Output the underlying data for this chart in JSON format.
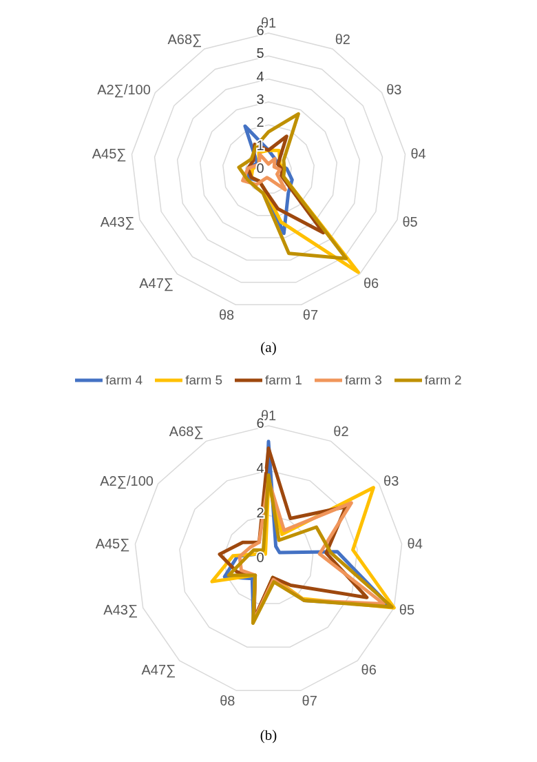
{
  "chart_data": [
    {
      "type": "radar",
      "title": "(a)",
      "categories": [
        "θ1",
        "θ2",
        "θ3",
        "θ4",
        "θ5",
        "θ6",
        "θ7",
        "θ8",
        "A47∑",
        "A43∑",
        "A45∑",
        "A2∑/100",
        "A68∑"
      ],
      "ylim": [
        0,
        6
      ],
      "yticks": [
        0,
        1,
        2,
        3,
        4,
        5,
        6
      ],
      "grid": true,
      "legend": false,
      "marker": "none",
      "series": [
        {
          "color": "#4472c4",
          "values": [
            0.9,
            0.6,
            0.5,
            0.8,
            1.1,
            1.3,
            2.8,
            0.8,
            0.6,
            0.9,
            0.9,
            0.6,
            2.2
          ]
        },
        {
          "color": "#ffc000",
          "values": [
            0.9,
            1.0,
            0.6,
            0.6,
            0.7,
            5.9,
            2.3,
            0.8,
            0.6,
            0.8,
            0.7,
            0.5,
            0.9
          ]
        },
        {
          "color": "#9e480e",
          "values": [
            0.9,
            1.7,
            0.5,
            0.6,
            0.6,
            3.6,
            1.7,
            0.8,
            0.6,
            0.8,
            0.9,
            0.8,
            1.3
          ]
        },
        {
          "color": "#f0955a",
          "values": [
            0.3,
            0.6,
            0.3,
            0.5,
            0.4,
            1.1,
            0.4,
            0.3,
            0.8,
            1.2,
            0.9,
            0.5,
            0.8
          ]
        },
        {
          "color": "#bf9000",
          "values": [
            1.7,
            2.8,
            0.8,
            0.7,
            0.7,
            5.1,
            3.7,
            1.0,
            0.9,
            1.0,
            1.3,
            0.9,
            1.2
          ]
        }
      ]
    },
    {
      "type": "radar",
      "title": "(b)",
      "categories": [
        "θ1",
        "θ2",
        "θ3",
        "θ4",
        "θ5",
        "θ6",
        "θ7",
        "θ8",
        "A47∑",
        "A43∑",
        "A45∑",
        "A2∑/100",
        "A68∑"
      ],
      "ylim": [
        0,
        6
      ],
      "yticks": [
        0,
        2,
        4,
        6
      ],
      "grid": true,
      "legend": "top",
      "marker": "none",
      "series": [
        {
          "name": "farm 4",
          "color": "#4472c4",
          "values": [
            5.3,
            0.7,
            0.6,
            3.1,
            5.8,
            2.4,
            0.8,
            2.8,
            1.1,
            2.1,
            1.4,
            0.5,
            0.4
          ]
        },
        {
          "name": "farm 5",
          "color": "#ffc000",
          "values": [
            3.4,
            1.3,
            5.7,
            3.8,
            6.0,
            2.3,
            0.8,
            2.8,
            0.9,
            2.7,
            1.6,
            0.5,
            0.3
          ]
        },
        {
          "name": "farm 1",
          "color": "#9e480e",
          "values": [
            5.0,
            2.1,
            4.2,
            2.6,
            4.7,
            1.5,
            0.8,
            2.7,
            0.9,
            1.5,
            2.2,
            1.4,
            0.9
          ]
        },
        {
          "name": "farm 3",
          "color": "#f0955a",
          "values": [
            3.6,
            1.5,
            4.5,
            2.3,
            5.5,
            2.4,
            0.9,
            2.8,
            0.9,
            1.3,
            1.3,
            1.0,
            0.9
          ]
        },
        {
          "name": "farm 2",
          "color": "#bf9000",
          "values": [
            3.8,
            1.0,
            2.6,
            2.8,
            5.9,
            2.4,
            1.0,
            2.9,
            0.9,
            1.9,
            1.0,
            0.8,
            0.5
          ]
        }
      ]
    }
  ]
}
